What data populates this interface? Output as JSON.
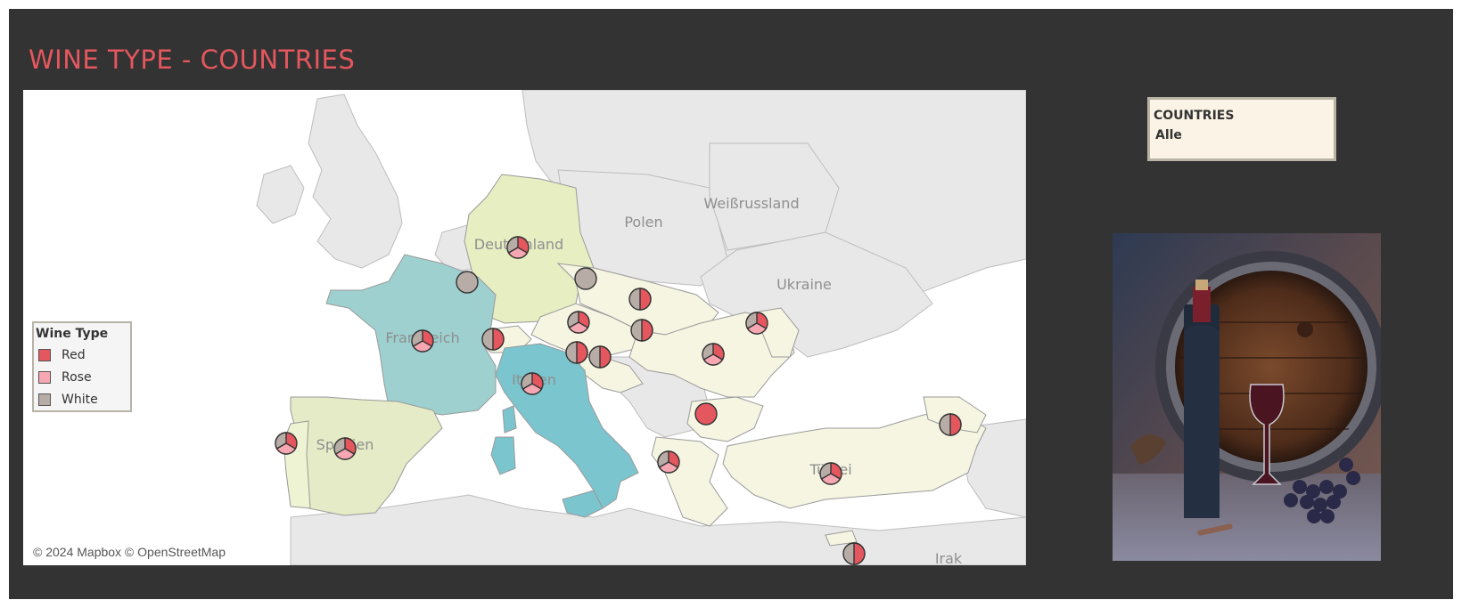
{
  "dashboard": {
    "title": "WINE TYPE - COUNTRIES"
  },
  "map": {
    "attribution": "© 2024 Mapbox © OpenStreetMap",
    "labels": {
      "deutschland": "Deutschland",
      "polen": "Polen",
      "weissrussland": "Weißrussland",
      "ukraine": "Ukraine",
      "frankreich": "Frankreich",
      "italien": "Italien",
      "spanien": "Spanien",
      "tuerkei": "Türkei",
      "irak": "Irak"
    }
  },
  "legend": {
    "title": "Wine Type",
    "items": [
      {
        "label": "Red",
        "color": "#e5575e"
      },
      {
        "label": "Rose",
        "color": "#f6a7b2"
      },
      {
        "label": "White",
        "color": "#b7aca6"
      }
    ]
  },
  "filter": {
    "title": "COUNTRIES",
    "value": "Alle"
  },
  "photo": {
    "icon": "wine-bottle-barrel-photo"
  }
}
